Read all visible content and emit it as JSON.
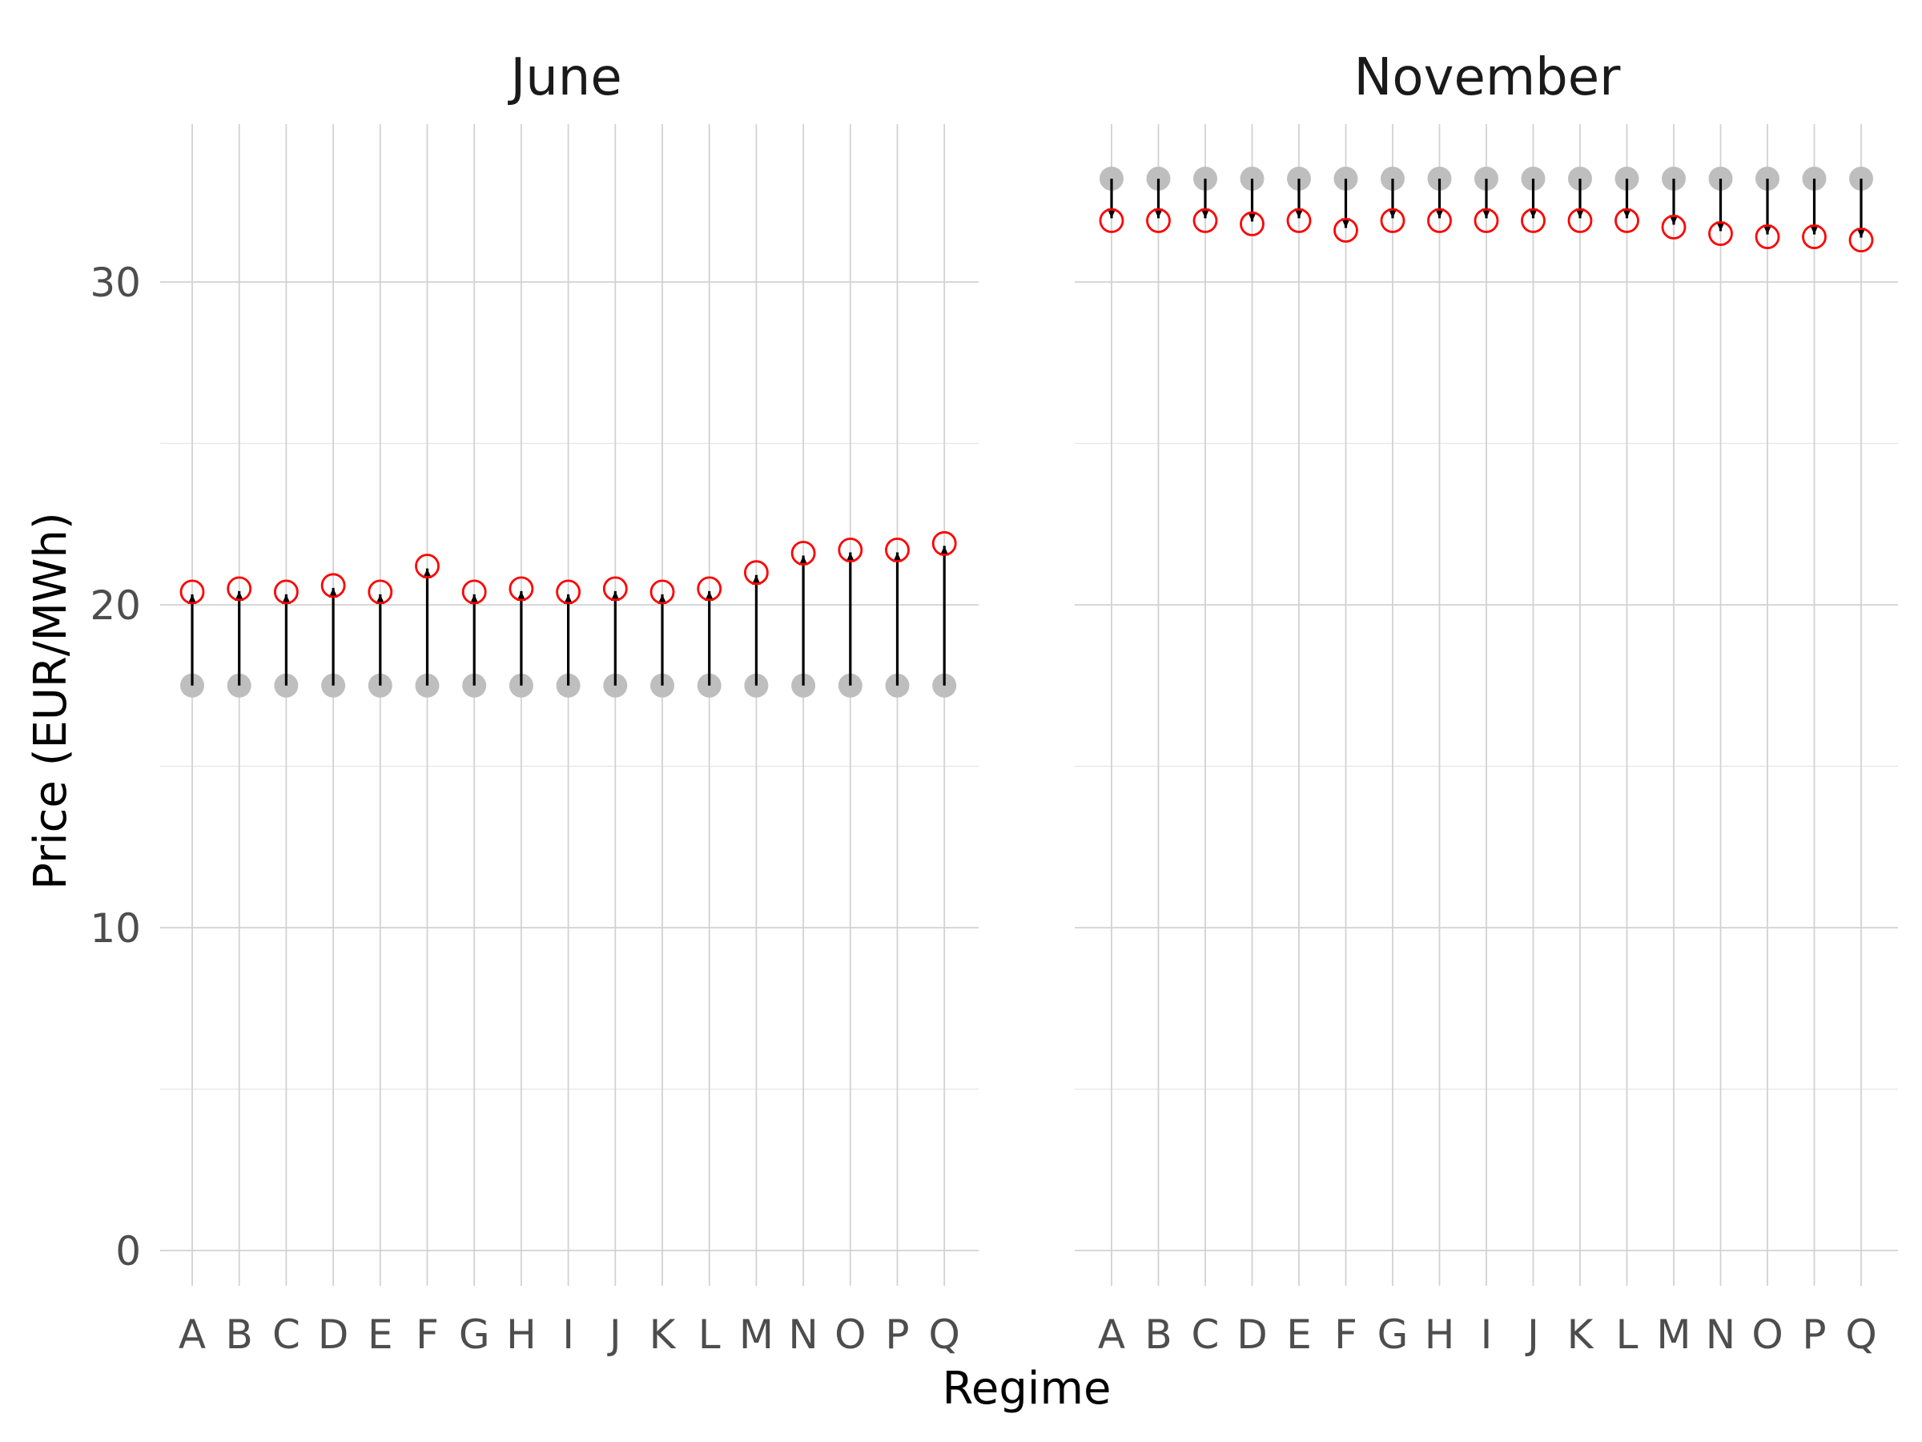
{
  "chart_data": {
    "type": "scatter",
    "description_style": "dumbbell with arrows from baseline (grey) to regime price (red open circle)",
    "xlabel": "Regime",
    "ylabel": "Price (EUR/MWh)",
    "ylim": [
      -1,
      35
    ],
    "y_ticks": [
      0,
      10,
      20,
      30
    ],
    "grid": true,
    "categories": [
      "A",
      "B",
      "C",
      "D",
      "E",
      "F",
      "G",
      "H",
      "I",
      "J",
      "K",
      "L",
      "M",
      "N",
      "O",
      "P",
      "Q"
    ],
    "colors": {
      "baseline": "#bebebe",
      "regime": "#ff0000",
      "arrow": "#000000",
      "grid": "#d2d2d2"
    },
    "panels": [
      {
        "title": "June",
        "baseline": [
          17.5,
          17.5,
          17.5,
          17.5,
          17.5,
          17.5,
          17.5,
          17.5,
          17.5,
          17.5,
          17.5,
          17.5,
          17.5,
          17.5,
          17.5,
          17.5,
          17.5
        ],
        "values": [
          20.4,
          20.5,
          20.4,
          20.6,
          20.4,
          21.2,
          20.4,
          20.5,
          20.4,
          20.5,
          20.4,
          20.5,
          21.0,
          21.6,
          21.7,
          21.7,
          21.9
        ]
      },
      {
        "title": "November",
        "baseline": [
          33.2,
          33.2,
          33.2,
          33.2,
          33.2,
          33.2,
          33.2,
          33.2,
          33.2,
          33.2,
          33.2,
          33.2,
          33.2,
          33.2,
          33.2,
          33.2,
          33.2
        ],
        "values": [
          31.9,
          31.9,
          31.9,
          31.8,
          31.9,
          31.6,
          31.9,
          31.9,
          31.9,
          31.9,
          31.9,
          31.9,
          31.7,
          31.5,
          31.4,
          31.4,
          31.3
        ]
      }
    ]
  }
}
